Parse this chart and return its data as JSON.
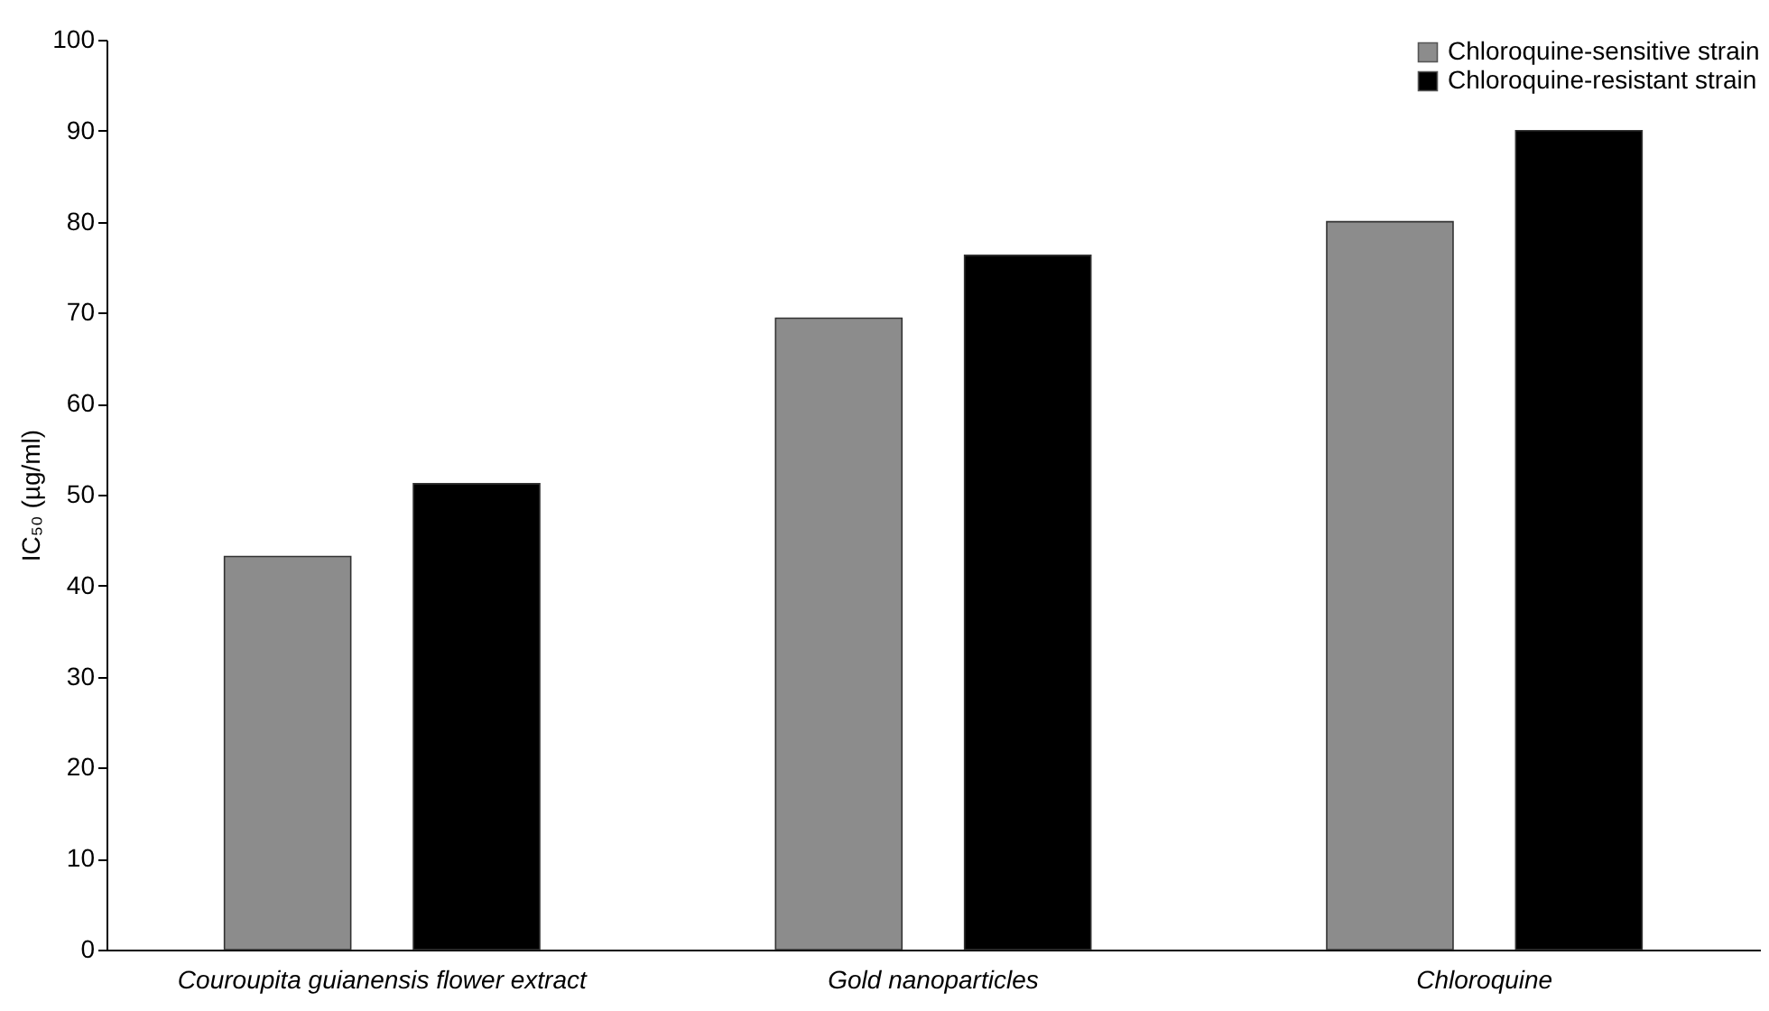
{
  "chart_data": {
    "type": "bar",
    "ylabel": "IC₅₀ (µg/ml)",
    "categories": [
      "Couroupita guianensis flower extract",
      "Gold nanoparticles",
      "Chloroquine"
    ],
    "series": [
      {
        "name": "Chloroquine-sensitive strain",
        "color": "#8c8c8c",
        "values": [
          43.2,
          69.4,
          80.0
        ]
      },
      {
        "name": "Chloroquine-resistant strain",
        "color": "#000000",
        "values": [
          51.2,
          76.3,
          90.0
        ]
      }
    ],
    "ylim": [
      0,
      100
    ],
    "yticks": [
      0,
      10,
      20,
      30,
      40,
      50,
      60,
      70,
      80,
      90,
      100
    ],
    "grid": false,
    "legend": "top right"
  }
}
